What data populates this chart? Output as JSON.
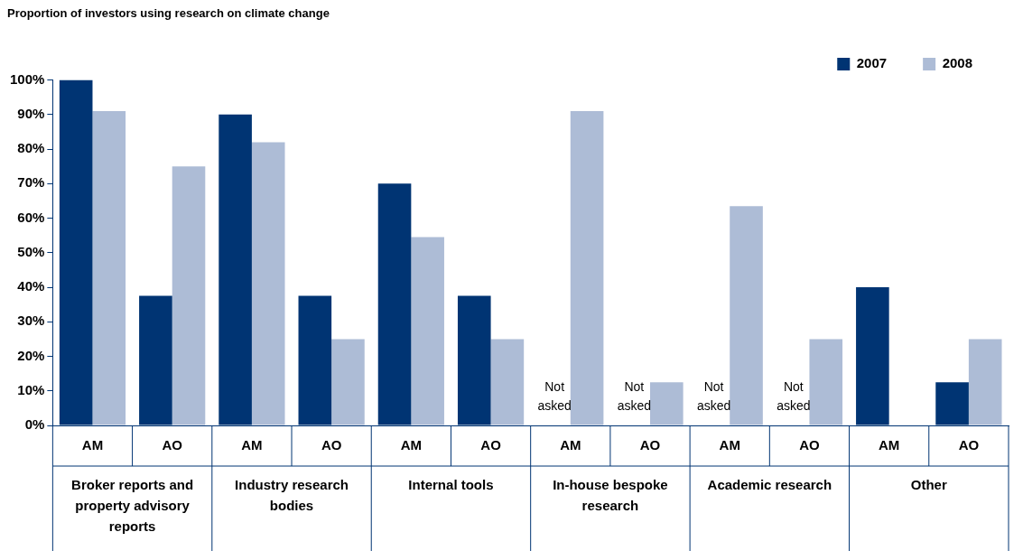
{
  "chart_data": {
    "type": "bar",
    "title": "Proportion of investors using research on climate change",
    "categories": [
      "AM",
      "AO",
      "AM",
      "AO",
      "AM",
      "AO",
      "AM",
      "AO",
      "AM",
      "AO",
      "AM",
      "AO"
    ],
    "series": [
      {
        "name": "2007",
        "color": "#003473",
        "values": [
          100,
          37.5,
          90,
          37.5,
          70,
          37.5,
          null,
          null,
          null,
          null,
          40,
          12.5
        ]
      },
      {
        "name": "2008",
        "color": "#adbcd6",
        "values": [
          91,
          75,
          82,
          25,
          54.5,
          25,
          91,
          12.5,
          63.5,
          25,
          0,
          25
        ]
      }
    ],
    "ylim": [
      0,
      100
    ],
    "yticks": [
      {
        "value": 0,
        "label": "0%"
      },
      {
        "value": 10,
        "label": "10%"
      },
      {
        "value": 20,
        "label": "20%"
      },
      {
        "value": 30,
        "label": "30%"
      },
      {
        "value": 40,
        "label": "40%"
      },
      {
        "value": 50,
        "label": "50%"
      },
      {
        "value": 60,
        "label": "60%"
      },
      {
        "value": 70,
        "label": "70%"
      },
      {
        "value": 80,
        "label": "80%"
      },
      {
        "value": 90,
        "label": "90%"
      },
      {
        "value": 100,
        "label": "100%"
      }
    ],
    "annotations": [
      "Broker reports and property advisory reports",
      "Industry research bodies",
      "Internal tools",
      "In-house bespoke research",
      "Academic research",
      "Other",
      "Not asked",
      "Not asked",
      "Not asked",
      "Not asked"
    ],
    "grid": false,
    "legend": "top right"
  }
}
